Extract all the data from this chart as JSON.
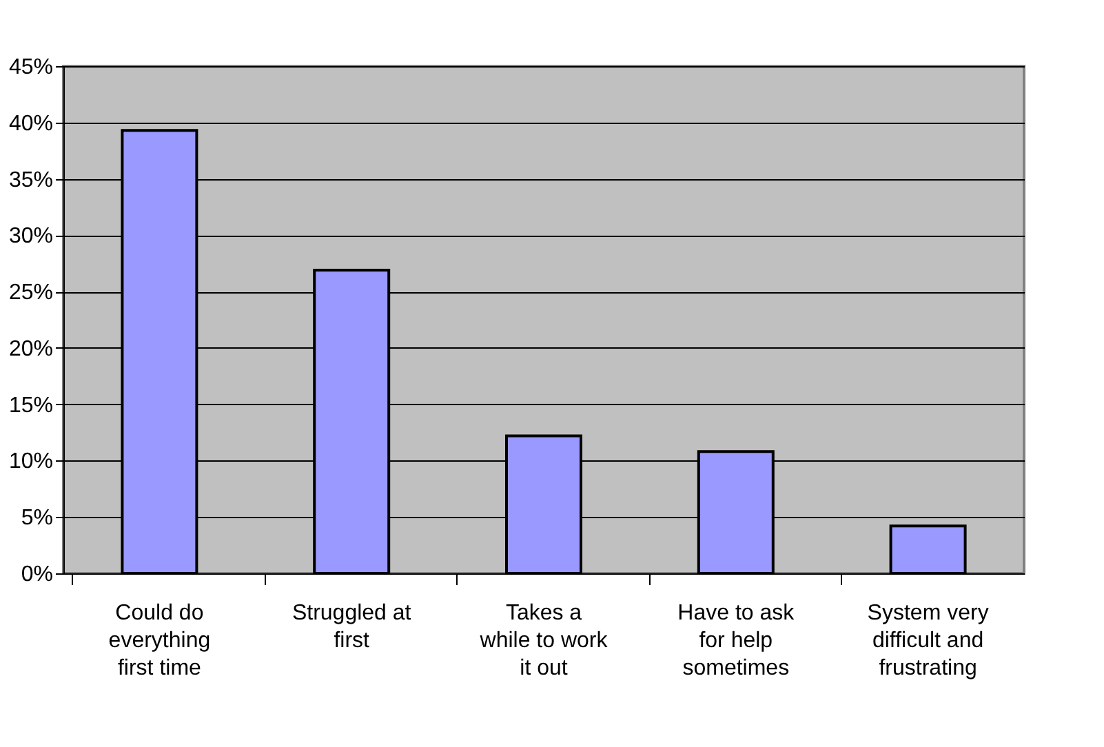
{
  "chart_data": {
    "type": "bar",
    "categories": [
      "Could do\neverything\nfirst time",
      "Struggled at\nfirst",
      "Takes a\nwhile to work\nit out",
      "Have to ask\nfor help\nsometimes",
      "System very\ndifficult and\nfrustrating"
    ],
    "values": [
      39.3,
      26.9,
      12.2,
      10.8,
      4.2
    ],
    "color": "#9999ff",
    "ylim": [
      0,
      45
    ],
    "yticks": [
      {
        "value": 0,
        "label": "0%"
      },
      {
        "value": 5,
        "label": "5%"
      },
      {
        "value": 10,
        "label": "10%"
      },
      {
        "value": 15,
        "label": "15%"
      },
      {
        "value": 20,
        "label": "20%"
      },
      {
        "value": 25,
        "label": "25%"
      },
      {
        "value": 30,
        "label": "30%"
      },
      {
        "value": 35,
        "label": "35%"
      },
      {
        "value": 40,
        "label": "40%"
      },
      {
        "value": 45,
        "label": "45%"
      }
    ],
    "grid": "y"
  }
}
